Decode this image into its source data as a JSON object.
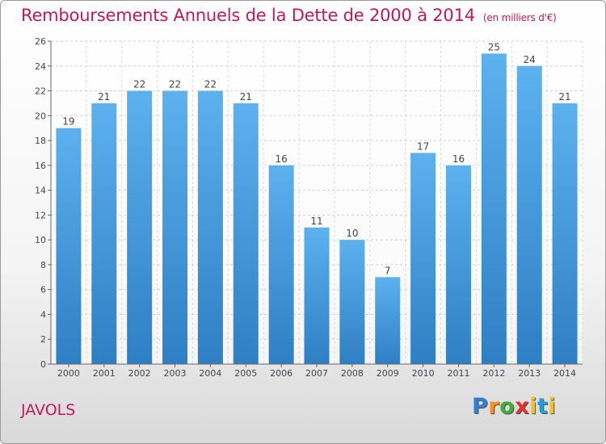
{
  "header": {
    "title": "Remboursements Annuels de la Dette de 2000 à 2014",
    "unit": "(en milliers d'€)"
  },
  "commune": "JAVOLS",
  "logo": {
    "text": "Proxiti",
    "letter_colors": [
      "#2f7fd8",
      "#ff8c1a",
      "#3fae3f",
      "#e0342c",
      "#f2c21b",
      "#1e9fd8",
      "#f2c21b"
    ]
  },
  "colors": {
    "bar": "#3d97dd",
    "bar_light": "#5aaeea",
    "axis_text": "#444444",
    "accent": "#c2185b"
  },
  "chart_data": {
    "type": "bar",
    "title": "Remboursements Annuels de la Dette de 2000 à 2014",
    "ylabel": "en milliers d'€",
    "xlabel": "",
    "categories": [
      "2000",
      "2001",
      "2002",
      "2003",
      "2004",
      "2005",
      "2006",
      "2007",
      "2008",
      "2009",
      "2010",
      "2011",
      "2012",
      "2013",
      "2014"
    ],
    "values": [
      19,
      21,
      22,
      22,
      22,
      21,
      16,
      11,
      10,
      7,
      17,
      16,
      25,
      24,
      21
    ],
    "ylim": [
      0,
      26
    ],
    "yticks": [
      0,
      2,
      4,
      6,
      8,
      10,
      12,
      14,
      16,
      18,
      20,
      22,
      24,
      26
    ],
    "grid": true
  }
}
